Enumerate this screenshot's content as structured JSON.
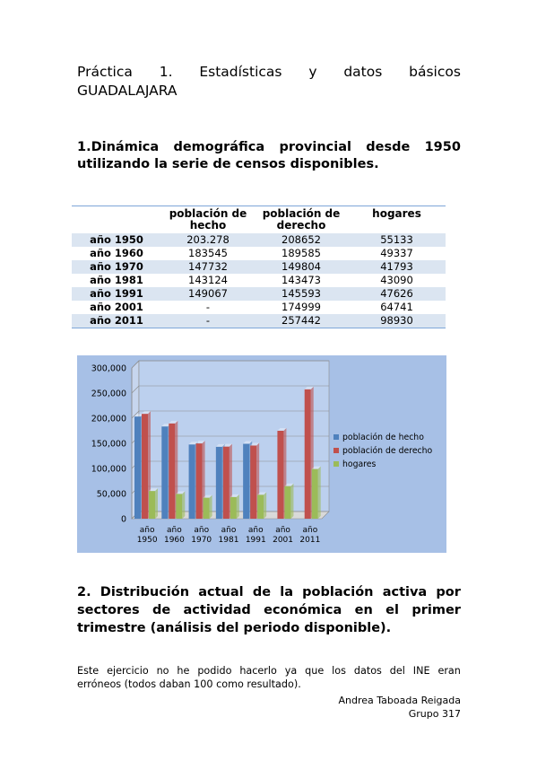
{
  "title": {
    "line1_words": [
      "Práctica",
      "1.",
      "Estadísticas",
      "y",
      "datos",
      "básicos"
    ],
    "line2": "GUADALAJARA"
  },
  "section1": {
    "line1_words": [
      "1.Dinámica",
      "demográfica",
      "provincial",
      "desde",
      "1950"
    ],
    "line2": "utilizando la serie de censos disponibles."
  },
  "table": {
    "headers": [
      "población de hecho",
      "población de derecho",
      "hogares"
    ],
    "rows": [
      [
        "año 1950",
        "203.278",
        "208652",
        "55133"
      ],
      [
        "año 1960",
        "183545",
        "189585",
        "49337"
      ],
      [
        "año 1970",
        "147732",
        "149804",
        "41793"
      ],
      [
        "año 1981",
        "143124",
        "143473",
        "43090"
      ],
      [
        "año 1991",
        "149067",
        "145593",
        "47626"
      ],
      [
        "año 2001",
        "-",
        "174999",
        "64741"
      ],
      [
        "año 2011",
        "-",
        "257442",
        "98930"
      ]
    ]
  },
  "chart_data": {
    "type": "bar",
    "categories": [
      "año 1950",
      "año 1960",
      "año 1970",
      "año 1981",
      "año 1991",
      "año 2001",
      "año 2011"
    ],
    "series": [
      {
        "name": "población de hecho",
        "values": [
          203278,
          183545,
          147732,
          143124,
          149067,
          null,
          null
        ],
        "color": "#4f81bd"
      },
      {
        "name": "población de derecho",
        "values": [
          208652,
          189585,
          149804,
          143473,
          145593,
          174999,
          257442
        ],
        "color": "#c0504d"
      },
      {
        "name": "hogares",
        "values": [
          55133,
          49337,
          41793,
          43090,
          47626,
          64741,
          98930
        ],
        "color": "#9bbb59"
      }
    ],
    "yticks": [
      "0",
      "50,000",
      "100,000",
      "150,000",
      "200,000",
      "250,000",
      "300,000"
    ],
    "ylim": [
      0,
      300000
    ],
    "legend": "right",
    "grid": true,
    "background": "#a7c0e6"
  },
  "section2": {
    "lines": [
      [
        "2.",
        "Distribución",
        "actual",
        "de",
        "la",
        "población",
        "activa",
        "por"
      ],
      [
        "sectores",
        "de",
        "actividad",
        "económica",
        "en",
        "el",
        "primer"
      ]
    ],
    "line3": "trimestre (análisis del periodo disponible)."
  },
  "paragraph": {
    "line1_words": [
      "Este",
      "ejercicio",
      "no",
      "he",
      "podido",
      "hacerlo",
      "ya",
      "que",
      "los",
      "datos",
      "del",
      "INE",
      "eran"
    ],
    "line2": "erróneos (todos daban 100 como resultado)."
  },
  "author": {
    "name": "Andrea Taboada Reigada",
    "group": "Grupo 317"
  }
}
